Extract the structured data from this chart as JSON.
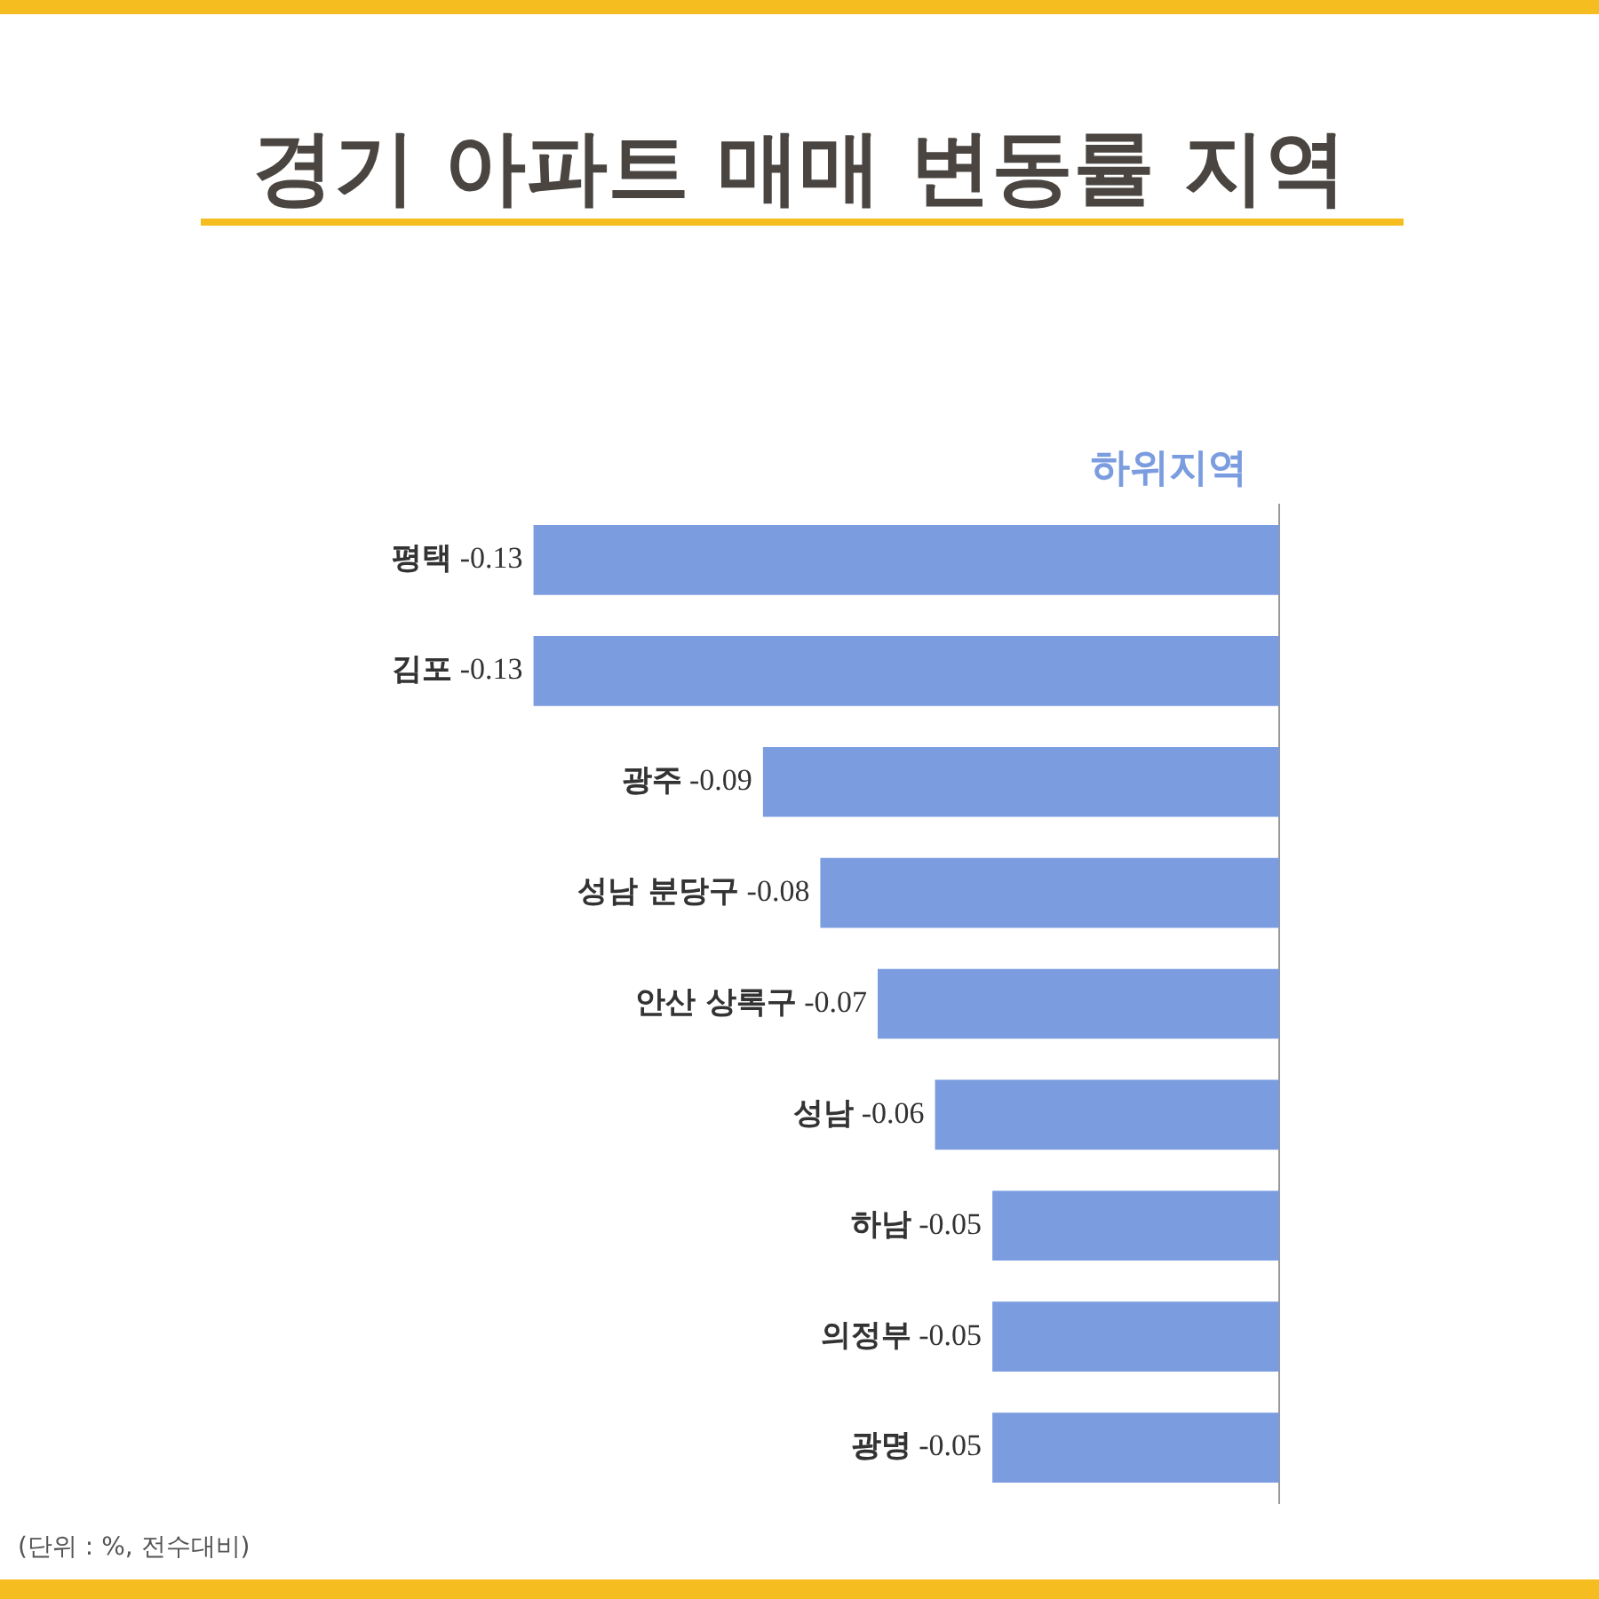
{
  "chart_data": {
    "type": "bar",
    "orientation": "horizontal",
    "title": "경기 아파트 매매 변동률 지역",
    "categories": [
      "평택",
      "김포",
      "광주",
      "성남 분당구",
      "안산 상록구",
      "성남",
      "하남",
      "의정부",
      "광명"
    ],
    "series": [
      {
        "name": "하위지역",
        "color": "#7b9de0",
        "values": [
          -0.13,
          -0.13,
          -0.09,
          -0.08,
          -0.07,
          -0.06,
          -0.05,
          -0.05,
          -0.05
        ]
      }
    ],
    "tick_labels": "y",
    "grid": false,
    "legend": false,
    "data_labels": true,
    "annotations": [
      "(단위 : %, 전수대비)"
    ]
  }
}
